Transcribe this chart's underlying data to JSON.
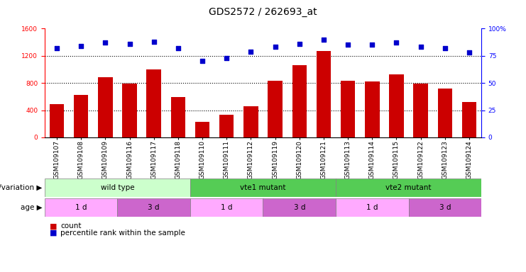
{
  "title": "GDS2572 / 262693_at",
  "samples": [
    "GSM109107",
    "GSM109108",
    "GSM109109",
    "GSM109116",
    "GSM109117",
    "GSM109118",
    "GSM109110",
    "GSM109111",
    "GSM109112",
    "GSM109119",
    "GSM109120",
    "GSM109121",
    "GSM109113",
    "GSM109114",
    "GSM109115",
    "GSM109122",
    "GSM109123",
    "GSM109124"
  ],
  "counts": [
    490,
    620,
    880,
    790,
    1000,
    590,
    230,
    330,
    460,
    830,
    1060,
    1270,
    830,
    820,
    930,
    790,
    720,
    520
  ],
  "percentiles": [
    82,
    84,
    87,
    86,
    88,
    82,
    70,
    73,
    79,
    83,
    86,
    90,
    85,
    85,
    87,
    83,
    82,
    78
  ],
  "left_ylim": [
    0,
    1600
  ],
  "left_yticks": [
    0,
    400,
    800,
    1200,
    1600
  ],
  "right_ylim": [
    0,
    100
  ],
  "right_yticks": [
    0,
    25,
    50,
    75,
    100
  ],
  "bar_color": "#cc0000",
  "dot_color": "#0000cc",
  "hline_values": [
    400,
    800,
    1200
  ],
  "genotype_groups": [
    {
      "label": "wild type",
      "start": 0,
      "end": 6,
      "color": "#ccffcc"
    },
    {
      "label": "vte1 mutant",
      "start": 6,
      "end": 12,
      "color": "#55cc55"
    },
    {
      "label": "vte2 mutant",
      "start": 12,
      "end": 18,
      "color": "#55cc55"
    }
  ],
  "age_groups": [
    {
      "label": "1 d",
      "start": 0,
      "end": 3,
      "color": "#ffaaff"
    },
    {
      "label": "3 d",
      "start": 3,
      "end": 6,
      "color": "#cc66cc"
    },
    {
      "label": "1 d",
      "start": 6,
      "end": 9,
      "color": "#ffaaff"
    },
    {
      "label": "3 d",
      "start": 9,
      "end": 12,
      "color": "#cc66cc"
    },
    {
      "label": "1 d",
      "start": 12,
      "end": 15,
      "color": "#ffaaff"
    },
    {
      "label": "3 d",
      "start": 15,
      "end": 18,
      "color": "#cc66cc"
    }
  ],
  "genotype_label": "genotype/variation",
  "age_label": "age",
  "legend_count_label": "count",
  "legend_percentile_label": "percentile rank within the sample",
  "bar_width": 0.6,
  "title_fontsize": 10,
  "tick_fontsize": 6.5,
  "label_fontsize": 8
}
